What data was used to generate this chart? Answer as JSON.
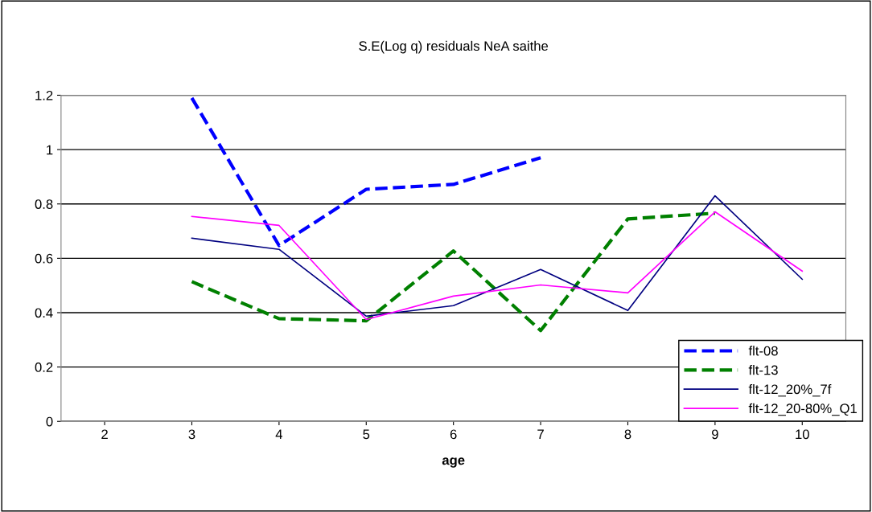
{
  "chart_data": {
    "type": "line",
    "title": "S.E(Log q) residuals NeA saithe",
    "xlabel": "age",
    "categories": [
      "2",
      "3",
      "4",
      "5",
      "6",
      "7",
      "8",
      "9",
      "10"
    ],
    "ylim": [
      0,
      1.2
    ],
    "yticks": [
      0,
      0.2,
      0.4,
      0.6,
      0.8,
      1,
      1.2
    ],
    "grid": "y",
    "legend": "bottom right",
    "marker": "none",
    "series": [
      {
        "name": "flt-08",
        "color": "#0000ff",
        "line_style": "dashed",
        "values": [
          null,
          1.19,
          0.647,
          0.854,
          0.872,
          0.97,
          null,
          null,
          null
        ]
      },
      {
        "name": "flt-13",
        "color": "#008000",
        "line_style": "dashed",
        "values": [
          null,
          0.514,
          0.378,
          0.37,
          0.627,
          0.334,
          0.745,
          0.766,
          null
        ]
      },
      {
        "name": "flt-12_20%_7f",
        "color": "#000080",
        "line_style": "solid",
        "values": [
          null,
          0.674,
          0.633,
          0.387,
          0.426,
          0.559,
          0.408,
          0.83,
          0.523
        ]
      },
      {
        "name": "flt-12_20-80%_Q1",
        "color": "#ff00ff",
        "line_style": "solid",
        "values": [
          null,
          0.754,
          0.721,
          0.375,
          0.461,
          0.502,
          0.473,
          0.771,
          0.553
        ]
      }
    ]
  }
}
